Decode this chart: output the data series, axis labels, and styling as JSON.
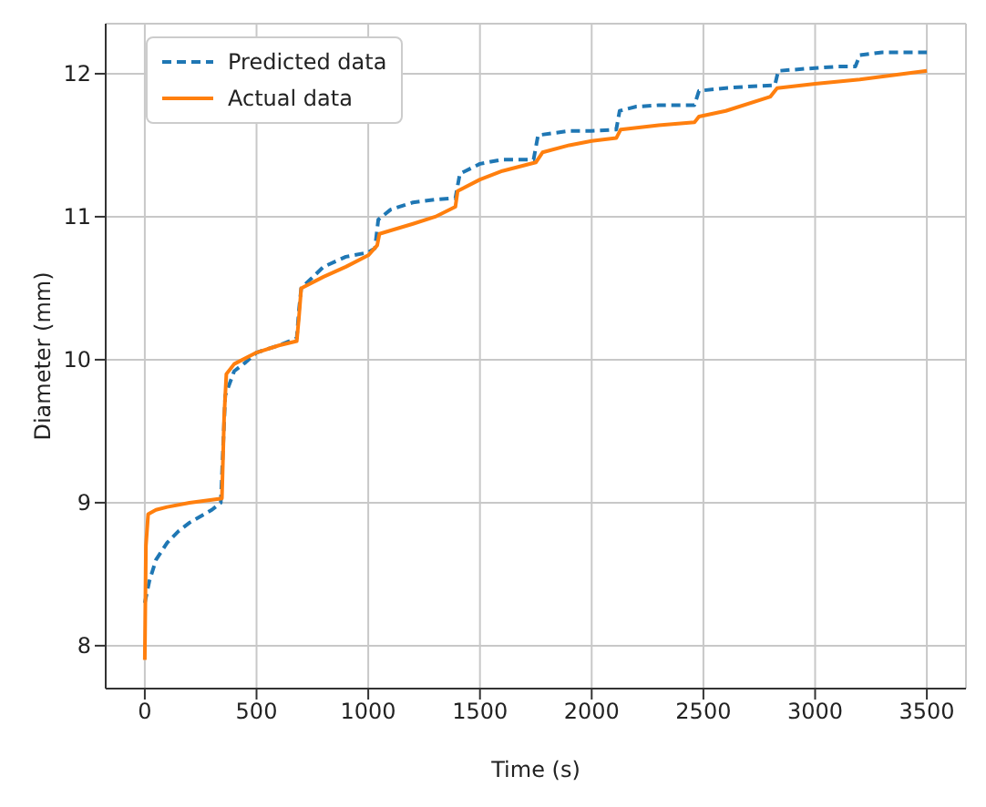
{
  "chart_data": {
    "type": "line",
    "xlabel": "Time (s)",
    "ylabel": "Diameter (mm)",
    "xlim": [
      -175,
      3675
    ],
    "ylim": [
      7.7,
      12.35
    ],
    "xticks": [
      0,
      500,
      1000,
      1500,
      2000,
      2500,
      3000,
      3500
    ],
    "yticks": [
      8,
      9,
      10,
      11,
      12
    ],
    "grid": true,
    "legend": "top left",
    "series": [
      {
        "name": "Predicted data",
        "color": "#1f77b4",
        "line_style": "dashed",
        "x": [
          0,
          20,
          50,
          100,
          150,
          200,
          300,
          340,
          360,
          400,
          450,
          500,
          600,
          680,
          690,
          700,
          800,
          900,
          1000,
          1030,
          1045,
          1100,
          1200,
          1300,
          1390,
          1410,
          1500,
          1600,
          1740,
          1760,
          1900,
          2000,
          2110,
          2125,
          2200,
          2300,
          2460,
          2480,
          2600,
          2700,
          2820,
          2835,
          3000,
          3100,
          3180,
          3200,
          3300,
          3500
        ],
        "values": [
          8.3,
          8.45,
          8.6,
          8.72,
          8.8,
          8.86,
          8.95,
          9.0,
          9.75,
          9.92,
          9.98,
          10.05,
          10.1,
          10.15,
          10.35,
          10.5,
          10.65,
          10.72,
          10.75,
          10.78,
          10.98,
          11.05,
          11.1,
          11.12,
          11.13,
          11.3,
          11.37,
          11.4,
          11.4,
          11.57,
          11.6,
          11.6,
          11.61,
          11.74,
          11.77,
          11.78,
          11.78,
          11.88,
          11.9,
          11.91,
          11.92,
          12.02,
          12.04,
          12.05,
          12.05,
          12.13,
          12.15,
          12.15
        ]
      },
      {
        "name": "Actual data",
        "color": "#ff7f0e",
        "line_style": "solid",
        "x": [
          0,
          5,
          15,
          50,
          100,
          200,
          300,
          345,
          355,
          365,
          400,
          500,
          600,
          680,
          690,
          700,
          800,
          900,
          1000,
          1040,
          1050,
          1200,
          1300,
          1390,
          1400,
          1500,
          1600,
          1750,
          1780,
          1900,
          2000,
          2110,
          2130,
          2300,
          2460,
          2480,
          2600,
          2800,
          2830,
          3000,
          3200,
          3500
        ],
        "values": [
          7.9,
          8.7,
          8.92,
          8.95,
          8.97,
          9.0,
          9.02,
          9.03,
          9.6,
          9.9,
          9.97,
          10.05,
          10.1,
          10.13,
          10.3,
          10.5,
          10.58,
          10.65,
          10.73,
          10.8,
          10.88,
          10.95,
          11.0,
          11.07,
          11.18,
          11.26,
          11.32,
          11.38,
          11.45,
          11.5,
          11.53,
          11.55,
          11.61,
          11.64,
          11.66,
          11.7,
          11.74,
          11.84,
          11.9,
          11.93,
          11.96,
          12.02
        ]
      }
    ]
  }
}
